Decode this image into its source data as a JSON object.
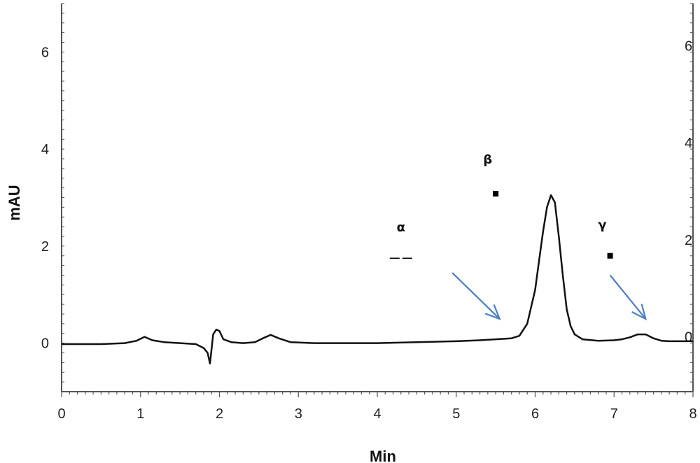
{
  "chart_data": {
    "type": "line",
    "title": "",
    "xlabel": "Min",
    "ylabel": "mAU",
    "xlim": [
      0,
      8
    ],
    "ylim": [
      -1,
      7
    ],
    "x_ticks": [
      0,
      1,
      2,
      3,
      4,
      5,
      6,
      7,
      8
    ],
    "y_ticks": [
      0,
      2,
      4,
      6
    ],
    "right_axis_ticks": [
      "0",
      "2",
      "4",
      "6"
    ],
    "grid": false,
    "legend": "none",
    "colors": {
      "trace": "#111111",
      "arrow": "#4a7fc1",
      "axis": "#555555"
    },
    "series": [
      {
        "x": [
          0,
          0.5,
          0.8,
          0.95,
          1.05,
          1.15,
          1.3,
          1.5,
          1.7,
          1.8,
          1.85,
          1.88,
          1.92,
          1.96,
          2.0,
          2.05,
          2.15,
          2.3,
          2.45,
          2.55,
          2.65,
          2.75,
          2.9,
          3.2,
          3.6,
          4.0,
          4.5,
          5.0,
          5.3,
          5.5,
          5.7,
          5.8,
          5.9,
          6.0,
          6.05,
          6.1,
          6.15,
          6.2,
          6.25,
          6.3,
          6.35,
          6.4,
          6.45,
          6.5,
          6.6,
          6.8,
          7.0,
          7.1,
          7.2,
          7.3,
          7.4,
          7.5,
          7.6,
          7.7,
          8.0
        ],
        "y": [
          -0.02,
          -0.02,
          0.0,
          0.05,
          0.13,
          0.06,
          0.02,
          0.0,
          -0.02,
          -0.1,
          -0.2,
          -0.42,
          0.18,
          0.28,
          0.25,
          0.08,
          0.02,
          0.0,
          0.02,
          0.1,
          0.17,
          0.1,
          0.02,
          0.0,
          0.0,
          0.0,
          0.02,
          0.04,
          0.06,
          0.08,
          0.1,
          0.15,
          0.4,
          1.1,
          1.7,
          2.3,
          2.8,
          3.05,
          2.9,
          2.2,
          1.4,
          0.7,
          0.35,
          0.18,
          0.08,
          0.05,
          0.06,
          0.08,
          0.12,
          0.18,
          0.18,
          0.1,
          0.05,
          0.04,
          0.04
        ]
      }
    ],
    "annotations": [
      {
        "label": "α",
        "x": 4.3,
        "y": 2.3,
        "marker": "dash"
      },
      {
        "label": "β",
        "x": 5.4,
        "y": 3.7,
        "marker": "square",
        "marker_x": 5.5,
        "marker_y": 3.08
      },
      {
        "label": "γ",
        "x": 6.85,
        "y": 2.35,
        "marker": "square",
        "marker_x": 6.95,
        "marker_y": 1.8
      }
    ],
    "arrows": [
      {
        "from": [
          4.95,
          1.45
        ],
        "to": [
          5.55,
          0.5
        ]
      },
      {
        "from": [
          6.95,
          1.4
        ],
        "to": [
          7.4,
          0.5
        ]
      }
    ]
  }
}
